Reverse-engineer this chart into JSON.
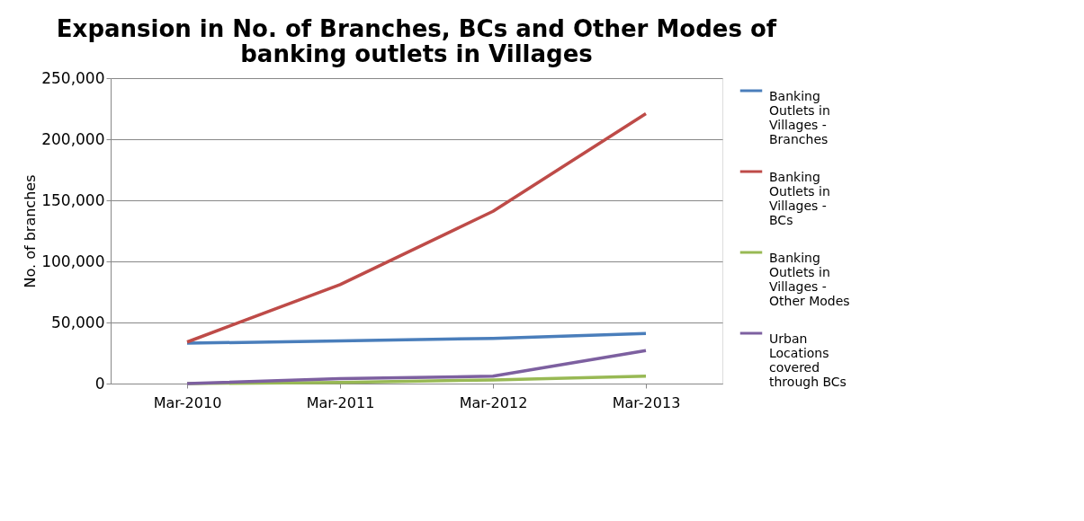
{
  "chart_data": {
    "type": "line",
    "title": "Expansion in No. of Branches, BCs and Other Modes of banking outlets in Villages",
    "ylabel": "No. of branches",
    "categories": [
      "Mar-2010",
      "Mar-2011",
      "Mar-2012",
      "Mar-2013"
    ],
    "series": [
      {
        "name": "Banking Outlets in Villages - Branches",
        "color": "#4a7ebb",
        "values": [
          33000,
          35000,
          37000,
          41000
        ]
      },
      {
        "name": "Banking Outlets in Villages - BCs",
        "color": "#be4b48",
        "values": [
          34000,
          81000,
          141000,
          221000
        ]
      },
      {
        "name": "Banking Outlets in Villages - Other Modes",
        "color": "#98b954",
        "values": [
          0,
          1000,
          3000,
          6000
        ]
      },
      {
        "name": "Urban Locations covered through BCs",
        "color": "#7d60a0",
        "values": [
          0,
          4000,
          6000,
          27000
        ]
      }
    ],
    "ylim": [
      0,
      250000
    ],
    "yticks": [
      0,
      {
        "value": 50000,
        "label": "50,000"
      },
      {
        "value": 100000,
        "label": "100,000"
      },
      {
        "value": 150000,
        "label": "150,000"
      },
      {
        "value": 200000,
        "label": "200,000"
      },
      {
        "value": 250000,
        "label": "250,000"
      }
    ],
    "grid": "y",
    "legend": "right",
    "marker": "none",
    "line_style": "solid"
  }
}
